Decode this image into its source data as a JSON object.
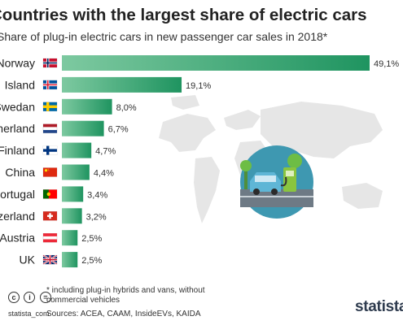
{
  "header": {
    "title": "Countries with the largest share of electric cars",
    "subtitle": "Share of plug-in electric cars in new passenger car sales in 2018*"
  },
  "chart_data": {
    "type": "bar",
    "orientation": "horizontal",
    "categories": [
      "Norway",
      "Island",
      "Swedan",
      "Netherland",
      "Finland",
      "China",
      "Portugal",
      "Switzerland",
      "Austria",
      "UK"
    ],
    "values": [
      49.1,
      19.1,
      8.0,
      6.7,
      4.7,
      4.4,
      3.4,
      3.2,
      2.5,
      2.5
    ],
    "value_labels": [
      "49,1%",
      "19,1%",
      "8,0%",
      "6,7%",
      "4,7%",
      "4,4%",
      "3,4%",
      "3,2%",
      "2,5%",
      "2,5%"
    ],
    "flags": [
      "norway-flag-icon",
      "iceland-flag-icon",
      "sweden-flag-icon",
      "netherlands-flag-icon",
      "finland-flag-icon",
      "china-flag-icon",
      "portugal-flag-icon",
      "switzerland-flag-icon",
      "austria-flag-icon",
      "uk-flag-icon"
    ],
    "grid": false,
    "colors": {
      "bar_start": "#7dc9a0",
      "bar_end": "#1f9460"
    }
  },
  "footer": {
    "note": "* including plug-in hybrids and vans, without commercial vehicles",
    "sources": "Sources: ACEA, CAAM, InsideEVs, KAIDA",
    "brand": "statista_com",
    "logo": "statista",
    "icons": [
      "cc-icon",
      "info-icon",
      "equals-icon"
    ]
  }
}
